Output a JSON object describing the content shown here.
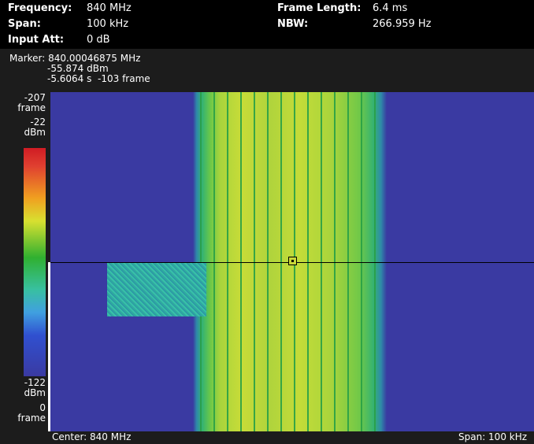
{
  "header": {
    "left": [
      {
        "label": "Frequency:",
        "value": "840 MHz"
      },
      {
        "label": "Span:",
        "value": "100 kHz"
      },
      {
        "label": "Input Att:",
        "value": "0 dB"
      }
    ],
    "right": [
      {
        "label": "Frame Length:",
        "value": "6.4 ms"
      },
      {
        "label": "NBW:",
        "value": "266.959 Hz"
      }
    ]
  },
  "marker": {
    "lines": [
      "Marker: 840.00046875 MHz",
      "-55.874 dBm",
      "-5.6064 s  -103 frame"
    ]
  },
  "color_scale": {
    "top": [
      "-207",
      "frame",
      "-22",
      "dBm"
    ],
    "bottom": [
      "-122",
      "dBm",
      "0",
      "frame"
    ]
  },
  "footer": {
    "center": "Center: 840 MHz",
    "span": "Span: 100 kHz"
  }
}
